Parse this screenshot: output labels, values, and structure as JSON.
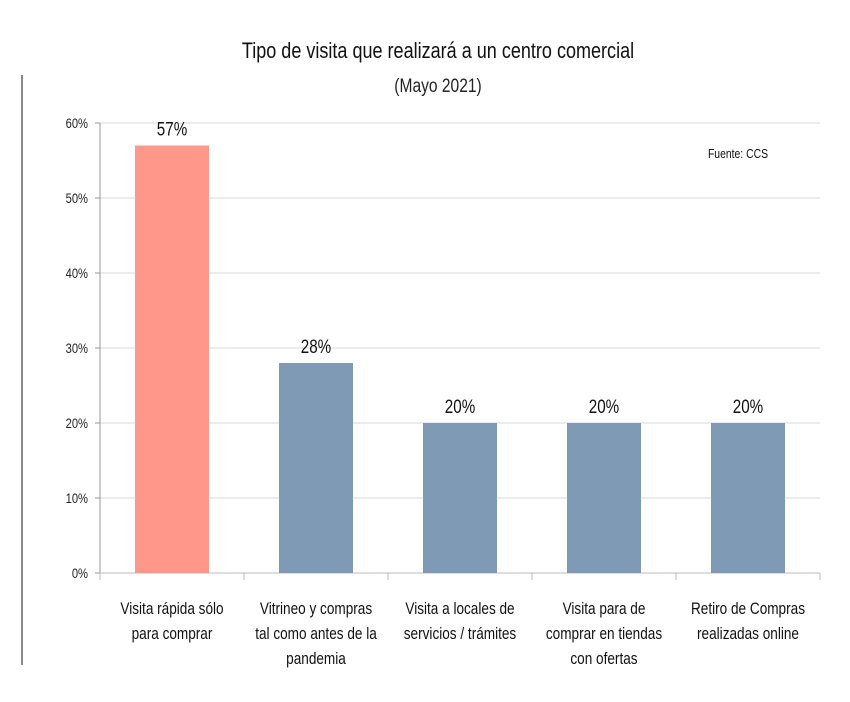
{
  "chart_data": {
    "type": "bar",
    "title": "Tipo de visita que realizará a un centro comercial",
    "subtitle": "(Mayo 2021)",
    "source": "Fuente: CCS",
    "categories": [
      [
        "Visita rápida sólo",
        "para comprar"
      ],
      [
        "Vitrineo y compras",
        "tal como antes de la",
        "pandemia"
      ],
      [
        "Visita a locales de",
        "servicios / trámites"
      ],
      [
        "Visita para de",
        "comprar en tiendas",
        "con ofertas"
      ],
      [
        "Retiro de Compras",
        "realizadas online"
      ]
    ],
    "values": [
      57,
      28,
      20,
      20,
      20
    ],
    "data_labels": [
      "57%",
      "28%",
      "20%",
      "20%",
      "20%"
    ],
    "colors": [
      "#FF978A",
      "#7F9AB4",
      "#7F9AB4",
      "#7F9AB4",
      "#7F9AB4"
    ],
    "ylim": [
      0,
      60
    ],
    "yticks": [
      0,
      10,
      20,
      30,
      40,
      50,
      60
    ],
    "ytick_labels": [
      "0%",
      "10%",
      "20%",
      "30%",
      "40%",
      "50%",
      "60%"
    ],
    "grid": true,
    "legend": "none"
  }
}
